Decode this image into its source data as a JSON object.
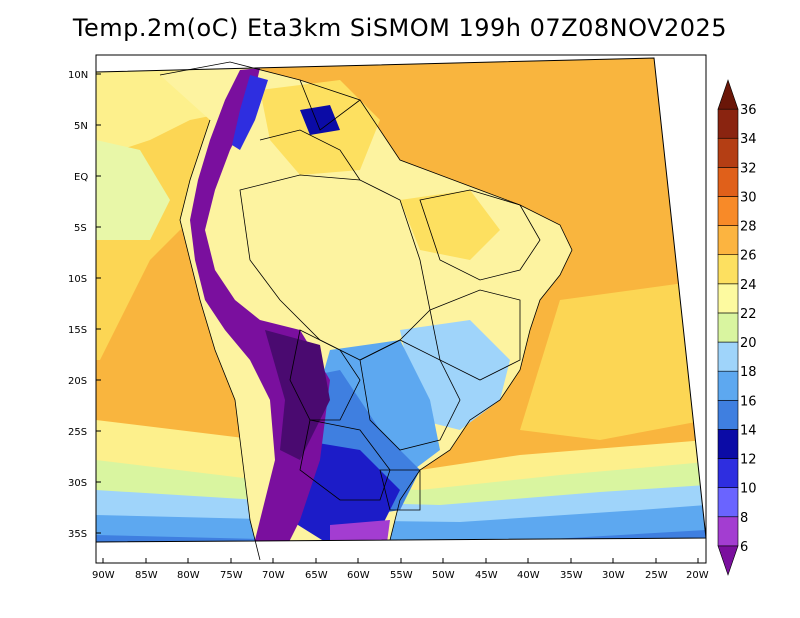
{
  "title": "Temp.2m(oC) Eta3km SiSMOM 199h 07Z08NOV2025",
  "axes": {
    "lat_labels": [
      "10N",
      "5N",
      "EQ",
      "5S",
      "10S",
      "15S",
      "20S",
      "25S",
      "30S",
      "35S"
    ],
    "lon_labels": [
      "90W",
      "85W",
      "80W",
      "75W",
      "70W",
      "65W",
      "60W",
      "55W",
      "50W",
      "45W",
      "40W",
      "35W",
      "30W",
      "25W",
      "20W"
    ]
  },
  "colorbar": {
    "levels": [
      "6",
      "8",
      "10",
      "12",
      "14",
      "16",
      "18",
      "20",
      "22",
      "24",
      "26",
      "28",
      "30",
      "32",
      "34",
      "36"
    ],
    "colors": [
      "#7a0f9e",
      "#a33dd1",
      "#6a64ff",
      "#2e2ee0",
      "#0b0ba6",
      "#3f7fe0",
      "#5da8f0",
      "#9fd4fa",
      "#d9f5a0",
      "#fdfaa0",
      "#fde060",
      "#fcb440",
      "#f88a28",
      "#e0601a",
      "#b43e14",
      "#8a2410",
      "#6a1608"
    ]
  },
  "legend_colors": {
    "ocean_warm": "#f7b13c",
    "ocean_mid": "#fbd24a",
    "land_warm": "#fcef88",
    "cool": "#9fd4fa",
    "cold": "#3f7fe0",
    "very_cold": "#0b0ba6",
    "frigid": "#7a0f9e"
  }
}
